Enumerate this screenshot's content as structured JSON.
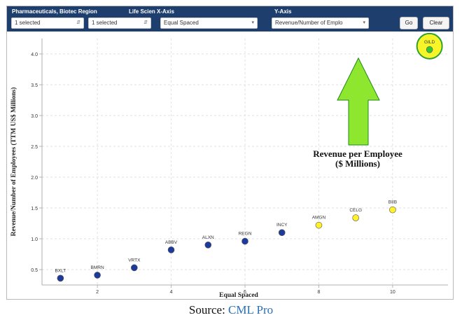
{
  "toolbar": {
    "region_label": "Pharmaceuticals, Biotec Region",
    "xaxis_label": "Life Scien X-Axis",
    "yaxis_label": "Y-Axis",
    "region_select": "1 selected",
    "life_select": "1 selected",
    "xaxis_select": "Equal Spaced",
    "yaxis_select": "Revenue/Number of Emplo",
    "go_label": "Go",
    "clear_label": "Clear"
  },
  "colors": {
    "toolbar_bg": "#1e3f6e",
    "point_blue": "#1c3a9c",
    "point_yellow": "#fff12a",
    "point_green": "#32c832",
    "arrow_green": "#8ee62e"
  },
  "annotation": {
    "line1": "Revenue per Employee",
    "line2": "($ Millions)"
  },
  "source": {
    "prefix": "Source: ",
    "link": "CML Pro"
  },
  "chart_data": {
    "type": "scatter",
    "xlabel": "Equal Spaced",
    "ylabel": "Revenue/Number of Employees (TTM US$ Millions)",
    "xlim": [
      0.5,
      11.5
    ],
    "ylim": [
      0.25,
      4.25
    ],
    "xticks": [
      2,
      4,
      6,
      8,
      10
    ],
    "yticks": [
      0.5,
      1.0,
      1.5,
      2.0,
      2.5,
      3.0,
      3.5,
      4.0
    ],
    "grid": true,
    "points": [
      {
        "label": "BXLT",
        "x": 1,
        "y": 0.36,
        "color": "blue"
      },
      {
        "label": "BMRN",
        "x": 2,
        "y": 0.41,
        "color": "blue"
      },
      {
        "label": "VRTX",
        "x": 3,
        "y": 0.53,
        "color": "blue"
      },
      {
        "label": "ABBV",
        "x": 4,
        "y": 0.82,
        "color": "blue"
      },
      {
        "label": "ALXN",
        "x": 5,
        "y": 0.9,
        "color": "blue"
      },
      {
        "label": "REGN",
        "x": 6,
        "y": 0.96,
        "color": "blue"
      },
      {
        "label": "INCY",
        "x": 7,
        "y": 1.1,
        "color": "blue"
      },
      {
        "label": "AMGN",
        "x": 8,
        "y": 1.22,
        "color": "yellow"
      },
      {
        "label": "CELG",
        "x": 9,
        "y": 1.34,
        "color": "yellow"
      },
      {
        "label": "BIIB",
        "x": 10,
        "y": 1.47,
        "color": "yellow"
      },
      {
        "label": "GILD",
        "x": 11,
        "y": 4.07,
        "color": "green"
      }
    ]
  }
}
